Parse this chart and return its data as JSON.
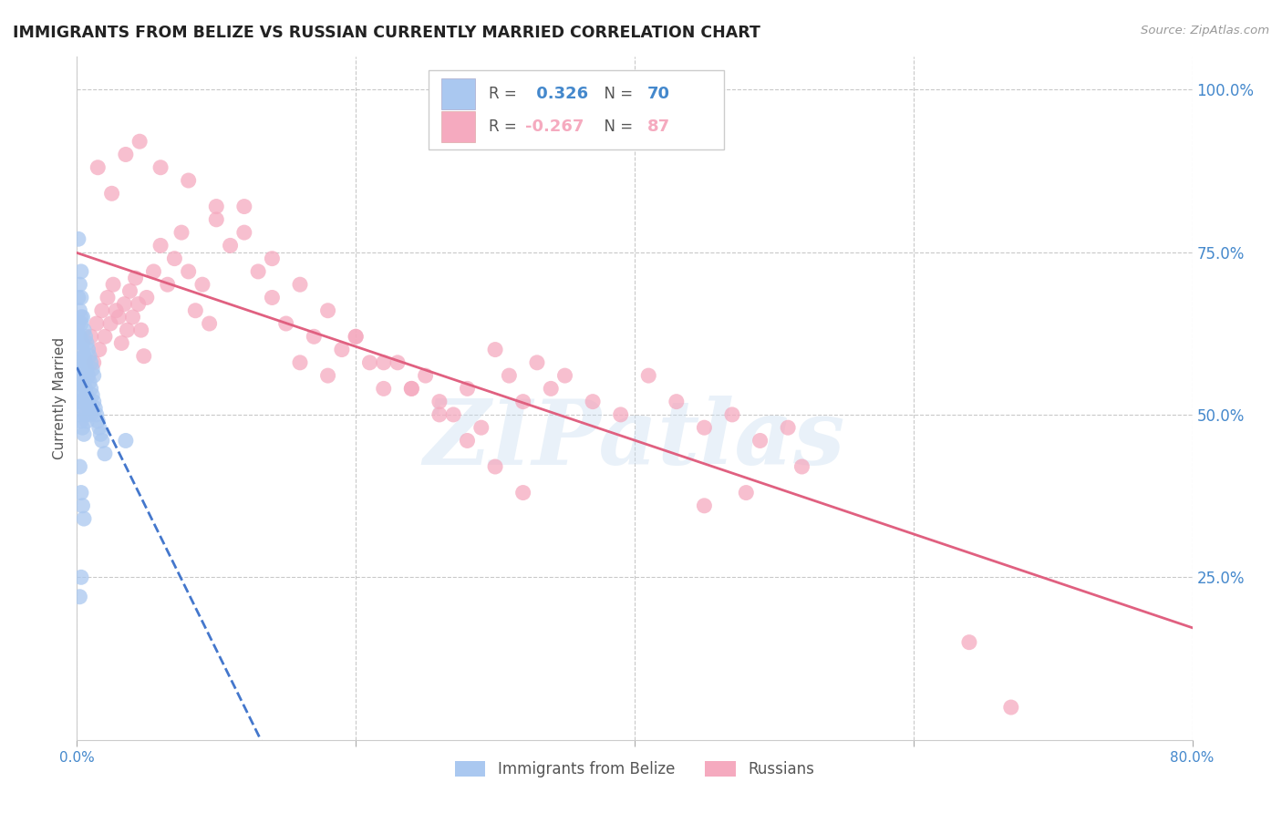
{
  "title": "IMMIGRANTS FROM BELIZE VS RUSSIAN CURRENTLY MARRIED CORRELATION CHART",
  "source_text": "Source: ZipAtlas.com",
  "ylabel": "Currently Married",
  "watermark": "ZIPatlas",
  "x_min": 0.0,
  "x_max": 0.8,
  "y_min": 0.0,
  "y_max": 1.05,
  "x_ticks": [
    0.0,
    0.2,
    0.4,
    0.6,
    0.8
  ],
  "x_tick_labels": [
    "0.0%",
    "",
    "",
    "",
    "80.0%"
  ],
  "y_ticks_right": [
    0.25,
    0.5,
    0.75,
    1.0
  ],
  "y_tick_labels_right": [
    "25.0%",
    "50.0%",
    "75.0%",
    "100.0%"
  ],
  "legend": {
    "belize_r": "0.326",
    "belize_n": "70",
    "russian_r": "-0.267",
    "russian_n": "87"
  },
  "belize_color": "#aac8f0",
  "russian_color": "#f5aabf",
  "belize_line_color": "#4477cc",
  "russian_line_color": "#e06080",
  "grid_color": "#bbbbbb",
  "background_color": "#ffffff",
  "title_color": "#222222",
  "right_axis_color": "#4488cc",
  "belize_x": [
    0.001,
    0.001,
    0.001,
    0.002,
    0.002,
    0.002,
    0.002,
    0.003,
    0.003,
    0.003,
    0.003,
    0.003,
    0.004,
    0.004,
    0.004,
    0.004,
    0.005,
    0.005,
    0.005,
    0.005,
    0.006,
    0.006,
    0.006,
    0.007,
    0.007,
    0.007,
    0.008,
    0.008,
    0.009,
    0.009,
    0.01,
    0.01,
    0.011,
    0.012,
    0.013,
    0.014,
    0.015,
    0.016,
    0.017,
    0.018,
    0.001,
    0.001,
    0.002,
    0.002,
    0.002,
    0.003,
    0.003,
    0.003,
    0.004,
    0.004,
    0.004,
    0.005,
    0.005,
    0.006,
    0.006,
    0.007,
    0.008,
    0.009,
    0.01,
    0.011,
    0.012,
    0.002,
    0.003,
    0.004,
    0.005,
    0.02,
    0.035,
    0.001,
    0.002,
    0.003
  ],
  "belize_y": [
    0.58,
    0.54,
    0.5,
    0.62,
    0.58,
    0.55,
    0.52,
    0.65,
    0.61,
    0.57,
    0.53,
    0.49,
    0.6,
    0.56,
    0.52,
    0.48,
    0.59,
    0.55,
    0.51,
    0.47,
    0.58,
    0.54,
    0.5,
    0.57,
    0.53,
    0.49,
    0.56,
    0.52,
    0.55,
    0.51,
    0.54,
    0.5,
    0.53,
    0.52,
    0.51,
    0.5,
    0.49,
    0.48,
    0.47,
    0.46,
    0.68,
    0.64,
    0.7,
    0.66,
    0.62,
    0.72,
    0.68,
    0.64,
    0.65,
    0.61,
    0.57,
    0.63,
    0.59,
    0.62,
    0.58,
    0.61,
    0.6,
    0.59,
    0.58,
    0.57,
    0.56,
    0.42,
    0.38,
    0.36,
    0.34,
    0.44,
    0.46,
    0.77,
    0.22,
    0.25
  ],
  "russian_x": [
    0.01,
    0.012,
    0.014,
    0.016,
    0.018,
    0.02,
    0.022,
    0.024,
    0.026,
    0.028,
    0.03,
    0.032,
    0.034,
    0.036,
    0.038,
    0.04,
    0.042,
    0.044,
    0.046,
    0.048,
    0.05,
    0.055,
    0.06,
    0.065,
    0.07,
    0.075,
    0.08,
    0.085,
    0.09,
    0.095,
    0.1,
    0.11,
    0.12,
    0.13,
    0.14,
    0.15,
    0.16,
    0.17,
    0.18,
    0.19,
    0.2,
    0.21,
    0.22,
    0.23,
    0.24,
    0.25,
    0.26,
    0.27,
    0.28,
    0.29,
    0.3,
    0.31,
    0.32,
    0.33,
    0.34,
    0.35,
    0.37,
    0.39,
    0.41,
    0.43,
    0.45,
    0.47,
    0.49,
    0.51,
    0.45,
    0.48,
    0.52,
    0.015,
    0.025,
    0.035,
    0.045,
    0.06,
    0.08,
    0.1,
    0.12,
    0.14,
    0.16,
    0.18,
    0.2,
    0.22,
    0.24,
    0.26,
    0.28,
    0.3,
    0.32,
    0.64,
    0.67
  ],
  "russian_y": [
    0.62,
    0.58,
    0.64,
    0.6,
    0.66,
    0.62,
    0.68,
    0.64,
    0.7,
    0.66,
    0.65,
    0.61,
    0.67,
    0.63,
    0.69,
    0.65,
    0.71,
    0.67,
    0.63,
    0.59,
    0.68,
    0.72,
    0.76,
    0.7,
    0.74,
    0.78,
    0.72,
    0.66,
    0.7,
    0.64,
    0.8,
    0.76,
    0.82,
    0.72,
    0.68,
    0.64,
    0.58,
    0.62,
    0.56,
    0.6,
    0.62,
    0.58,
    0.54,
    0.58,
    0.54,
    0.56,
    0.52,
    0.5,
    0.54,
    0.48,
    0.6,
    0.56,
    0.52,
    0.58,
    0.54,
    0.56,
    0.52,
    0.5,
    0.56,
    0.52,
    0.48,
    0.5,
    0.46,
    0.48,
    0.36,
    0.38,
    0.42,
    0.88,
    0.84,
    0.9,
    0.92,
    0.88,
    0.86,
    0.82,
    0.78,
    0.74,
    0.7,
    0.66,
    0.62,
    0.58,
    0.54,
    0.5,
    0.46,
    0.42,
    0.38,
    0.15,
    0.05
  ]
}
